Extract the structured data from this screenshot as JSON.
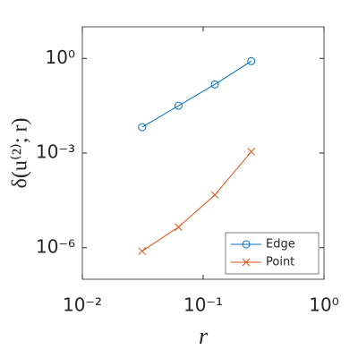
{
  "chart_data": {
    "type": "line",
    "x": [
      0.03125,
      0.0625,
      0.125,
      0.25
    ],
    "series": [
      {
        "name": "Edge",
        "color": "#0072bd",
        "marker": "o",
        "values": [
          0.0066,
          0.0316,
          0.15,
          0.82
        ]
      },
      {
        "name": "Point",
        "color": "#d95319",
        "marker": "x",
        "values": [
          7.8e-07,
          4.5e-06,
          4.7e-05,
          0.0011
        ]
      }
    ],
    "xlabel": "r",
    "ylabel": "δ(u⁽²⁾; r)",
    "xscale": "log",
    "yscale": "log",
    "xlim": [
      0.01,
      1
    ],
    "ylim": [
      1e-07,
      10
    ],
    "xticks": [
      {
        "value": 0.01,
        "label": "10⁻²"
      },
      {
        "value": 0.1,
        "label": "10⁻¹"
      },
      {
        "value": 1,
        "label": "10⁰"
      }
    ],
    "yticks": [
      {
        "value": 1e-06,
        "label": "10⁻⁶"
      },
      {
        "value": 0.001,
        "label": "10⁻³"
      },
      {
        "value": 1,
        "label": "10⁰"
      }
    ],
    "legend": "lower right",
    "grid": false
  }
}
